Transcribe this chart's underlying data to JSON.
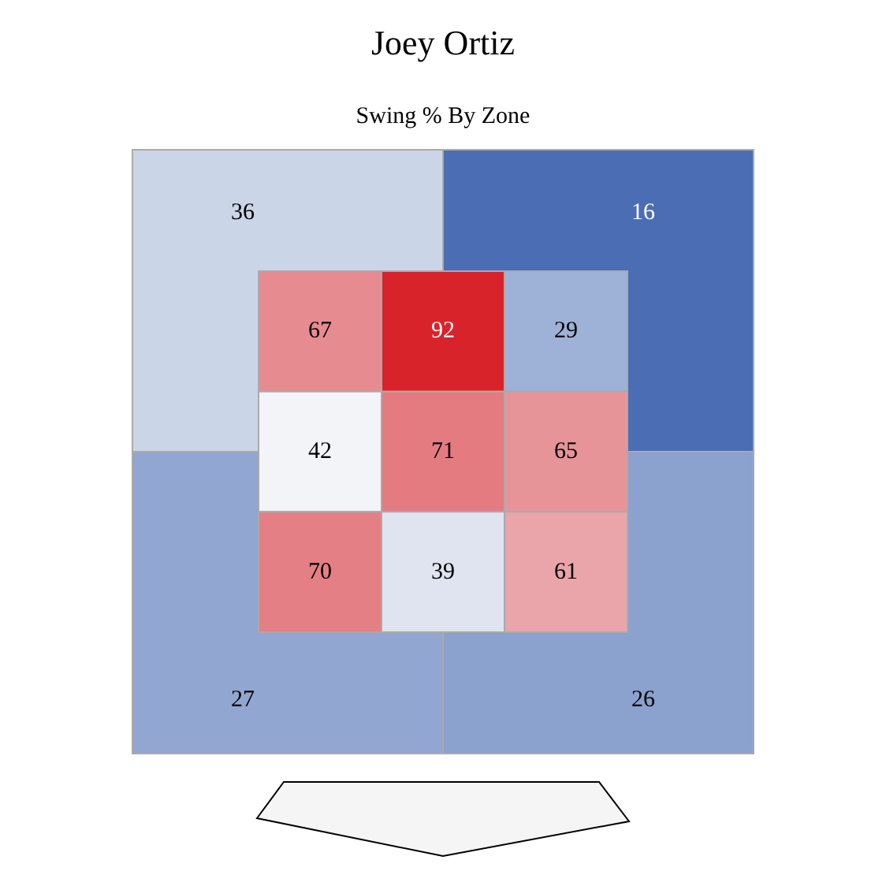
{
  "chart_data": [
    {
      "type": "heatmap",
      "title": "Joey Ortiz",
      "subtitle": "Swing % By Zone",
      "categories": [
        null,
        null
      ],
      "y_categories": [
        null,
        null
      ],
      "cells": [
        [
          36,
          16
        ],
        [
          27,
          26
        ]
      ],
      "data_labels": true
    },
    {
      "type": "heatmap",
      "categories": [
        null,
        null,
        null
      ],
      "y_categories": [
        null,
        null,
        null
      ],
      "cells": [
        [
          67,
          92,
          29
        ],
        [
          42,
          71,
          65
        ],
        [
          70,
          39,
          61
        ]
      ],
      "data_labels": true
    }
  ]
}
